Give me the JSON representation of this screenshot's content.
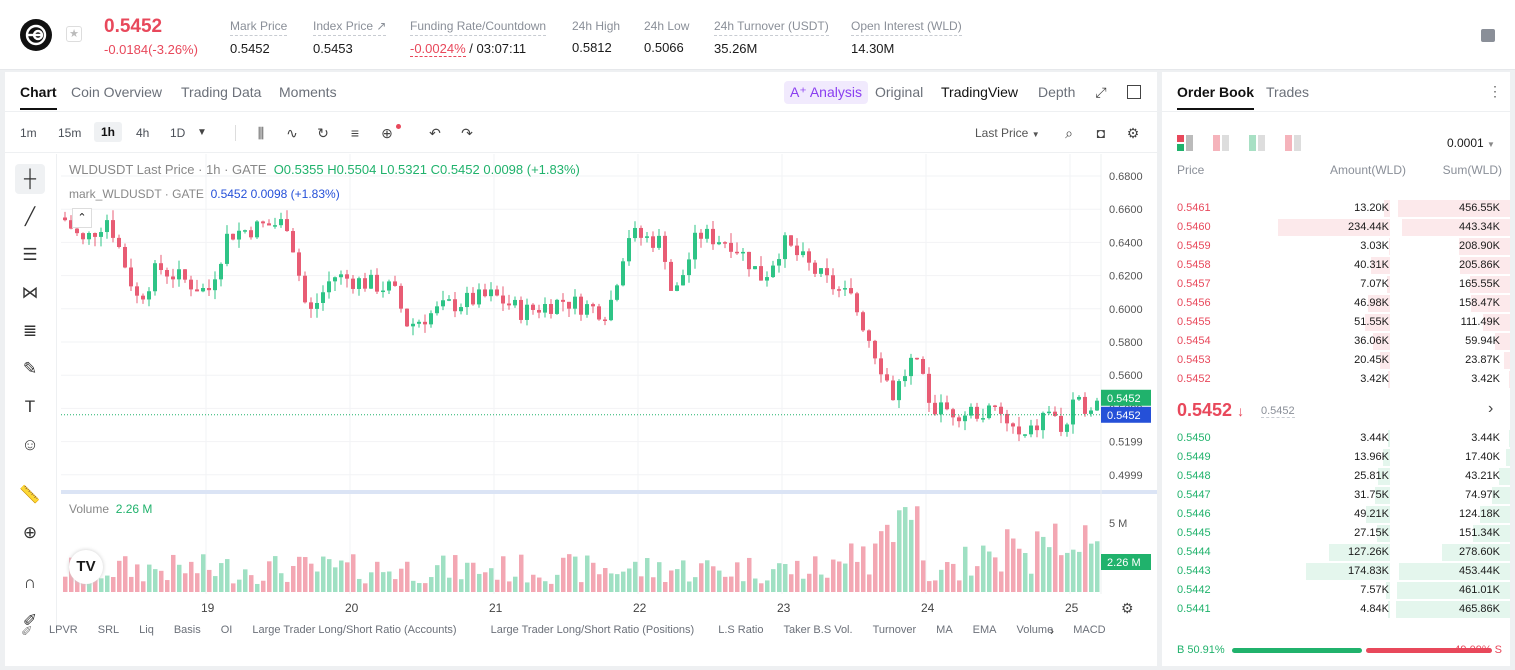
{
  "header": {
    "price": "0.5452",
    "change": "-0.0184(-3.26%)",
    "stats": [
      {
        "label": "Mark Price",
        "value": "0.5452"
      },
      {
        "label": "Index Price ↗",
        "value": "0.5453"
      },
      {
        "label": "Funding Rate/Countdown",
        "value_red": "-0.0024%",
        "value": " / 03:07:11"
      },
      {
        "label": "24h High",
        "value": "0.5812"
      },
      {
        "label": "24h Low",
        "value": "0.5066"
      },
      {
        "label": "24h Turnover (USDT)",
        "value": "35.26M"
      },
      {
        "label": "Open Interest (WLD)",
        "value": "14.30M"
      }
    ]
  },
  "tabs": [
    "Chart",
    "Coin Overview",
    "Trading Data",
    "Moments"
  ],
  "view_tabs": {
    "ai": "A⁺ Analysis",
    "original": "Original",
    "tradingview": "TradingView",
    "depth": "Depth"
  },
  "timeframes": [
    "1m",
    "15m",
    "1h",
    "4h",
    "1D"
  ],
  "last_price_select": "Last Price",
  "ohlc": {
    "symbol": "WLDUSDT Last Price · 1h · GATE",
    "o": "O0.5355",
    "h": "H0.5504",
    "l": "L0.5321",
    "c": "C0.5452",
    "chg": "0.0098",
    "chgp": "(+1.83%)"
  },
  "mark": {
    "symbol": "mark_WLDUSDT · GATE",
    "price": "0.5452",
    "chg": "0.0098",
    "chgp": "(+1.83%)"
  },
  "volume": {
    "label": "Volume",
    "value": "2.26 M",
    "tag": "2.26 M",
    "axis": "5 M"
  },
  "price_axis": [
    "0.6800",
    "0.6600",
    "0.6400",
    "0.6200",
    "0.6000",
    "0.5800",
    "0.5600",
    "0.5399",
    "0.5199",
    "0.4999"
  ],
  "price_tags": {
    "last": "0.5452",
    "mark": "0.5452"
  },
  "x_axis": [
    "19",
    "20",
    "21",
    "22",
    "23",
    "24",
    "25"
  ],
  "indicators": [
    "LPVR",
    "SRL",
    "Liq",
    "Basis",
    "OI",
    "Large Trader Long/Short Ratio (Accounts)",
    "Large Trader Long/Short Ratio (Positions)",
    "L.S Ratio",
    "Taker B.S Vol.",
    "Turnover",
    "MA",
    "EMA",
    "Volume",
    "MACD"
  ],
  "orderbook": {
    "tabs": [
      "Order Book",
      "Trades"
    ],
    "precision": "0.0001",
    "cols": [
      "Price",
      "Amount(WLD)",
      "Sum(WLD)"
    ],
    "asks": [
      [
        "0.5461",
        "13.20K",
        "456.55K"
      ],
      [
        "0.5460",
        "234.44K",
        "443.34K"
      ],
      [
        "0.5459",
        "3.03K",
        "208.90K"
      ],
      [
        "0.5458",
        "40.31K",
        "205.86K"
      ],
      [
        "0.5457",
        "7.07K",
        "165.55K"
      ],
      [
        "0.5456",
        "46.98K",
        "158.47K"
      ],
      [
        "0.5455",
        "51.55K",
        "111.49K"
      ],
      [
        "0.5454",
        "36.06K",
        "59.94K"
      ],
      [
        "0.5453",
        "20.45K",
        "23.87K"
      ],
      [
        "0.5452",
        "3.42K",
        "3.42K"
      ]
    ],
    "mid_price": "0.5452",
    "mid_arrow": "↓",
    "mid_mark": "0.5452",
    "bids": [
      [
        "0.5450",
        "3.44K",
        "3.44K"
      ],
      [
        "0.5449",
        "13.96K",
        "17.40K"
      ],
      [
        "0.5448",
        "25.81K",
        "43.21K"
      ],
      [
        "0.5447",
        "31.75K",
        "74.97K"
      ],
      [
        "0.5446",
        "49.21K",
        "124.18K"
      ],
      [
        "0.5445",
        "27.15K",
        "151.34K"
      ],
      [
        "0.5444",
        "127.26K",
        "278.60K"
      ],
      [
        "0.5443",
        "174.83K",
        "453.44K"
      ],
      [
        "0.5442",
        "7.57K",
        "461.01K"
      ],
      [
        "0.5441",
        "4.84K",
        "465.86K"
      ]
    ],
    "buy_ratio": "B 50.91%",
    "sell_ratio": "49.09% S",
    "buy_fraction": 0.5091
  },
  "colors": {
    "up": "#20b26c",
    "down": "#e8485b",
    "accent": "#2550d8"
  }
}
